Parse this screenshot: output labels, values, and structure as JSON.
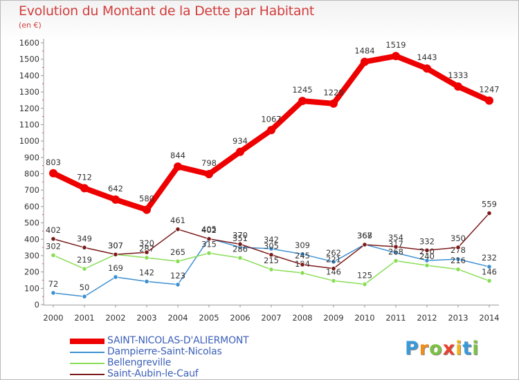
{
  "chart_data": {
    "type": "line",
    "title": "Evolution du Montant de la Dette par Habitant",
    "subtitle": "(en €)",
    "categories": [
      "2000",
      "2001",
      "2002",
      "2003",
      "2004",
      "2005",
      "2006",
      "2007",
      "2008",
      "2009",
      "2010",
      "2011",
      "2012",
      "2013",
      "2014"
    ],
    "ylim": [
      0,
      1600
    ],
    "yticks": [
      0,
      100,
      200,
      300,
      400,
      500,
      600,
      700,
      800,
      900,
      1000,
      1100,
      1200,
      1300,
      1400,
      1500,
      1600
    ],
    "grid": false,
    "legend_position": "bottom-left",
    "series": [
      {
        "name": "SAINT-NICOLAS-D'ALIERMONT",
        "color": "#ee0000",
        "values": [
          803,
          712,
          642,
          580,
          844,
          798,
          934,
          1067,
          1245,
          1229,
          1484,
          1519,
          1443,
          1333,
          1247
        ]
      },
      {
        "name": "Dampierre-Saint-Nicolas",
        "color": "#3d8fd1",
        "values": [
          72,
          50,
          169,
          142,
          123,
          405,
          351,
          342,
          309,
          262,
          368,
          317,
          270,
          278,
          232
        ]
      },
      {
        "name": "Bellengreville",
        "color": "#88dd55",
        "values": [
          302,
          219,
          307,
          287,
          265,
          315,
          286,
          215,
          194,
          146,
          125,
          268,
          240,
          216,
          146
        ]
      },
      {
        "name": "Saint-Aubin-le-Cauf",
        "color": "#7a1a1a",
        "values": [
          402,
          349,
          307,
          320,
          461,
          402,
          370,
          305,
          245,
          221,
          367,
          354,
          332,
          350,
          559
        ]
      }
    ]
  },
  "brand": {
    "letters": [
      "P",
      "r",
      "o",
      "x",
      "i",
      "t",
      "i"
    ],
    "colors": [
      "#3a9ad9",
      "#f08c1a",
      "#7cc242",
      "#e8412c",
      "#f0b41a",
      "#3a9ad9",
      "#7cc242"
    ]
  }
}
